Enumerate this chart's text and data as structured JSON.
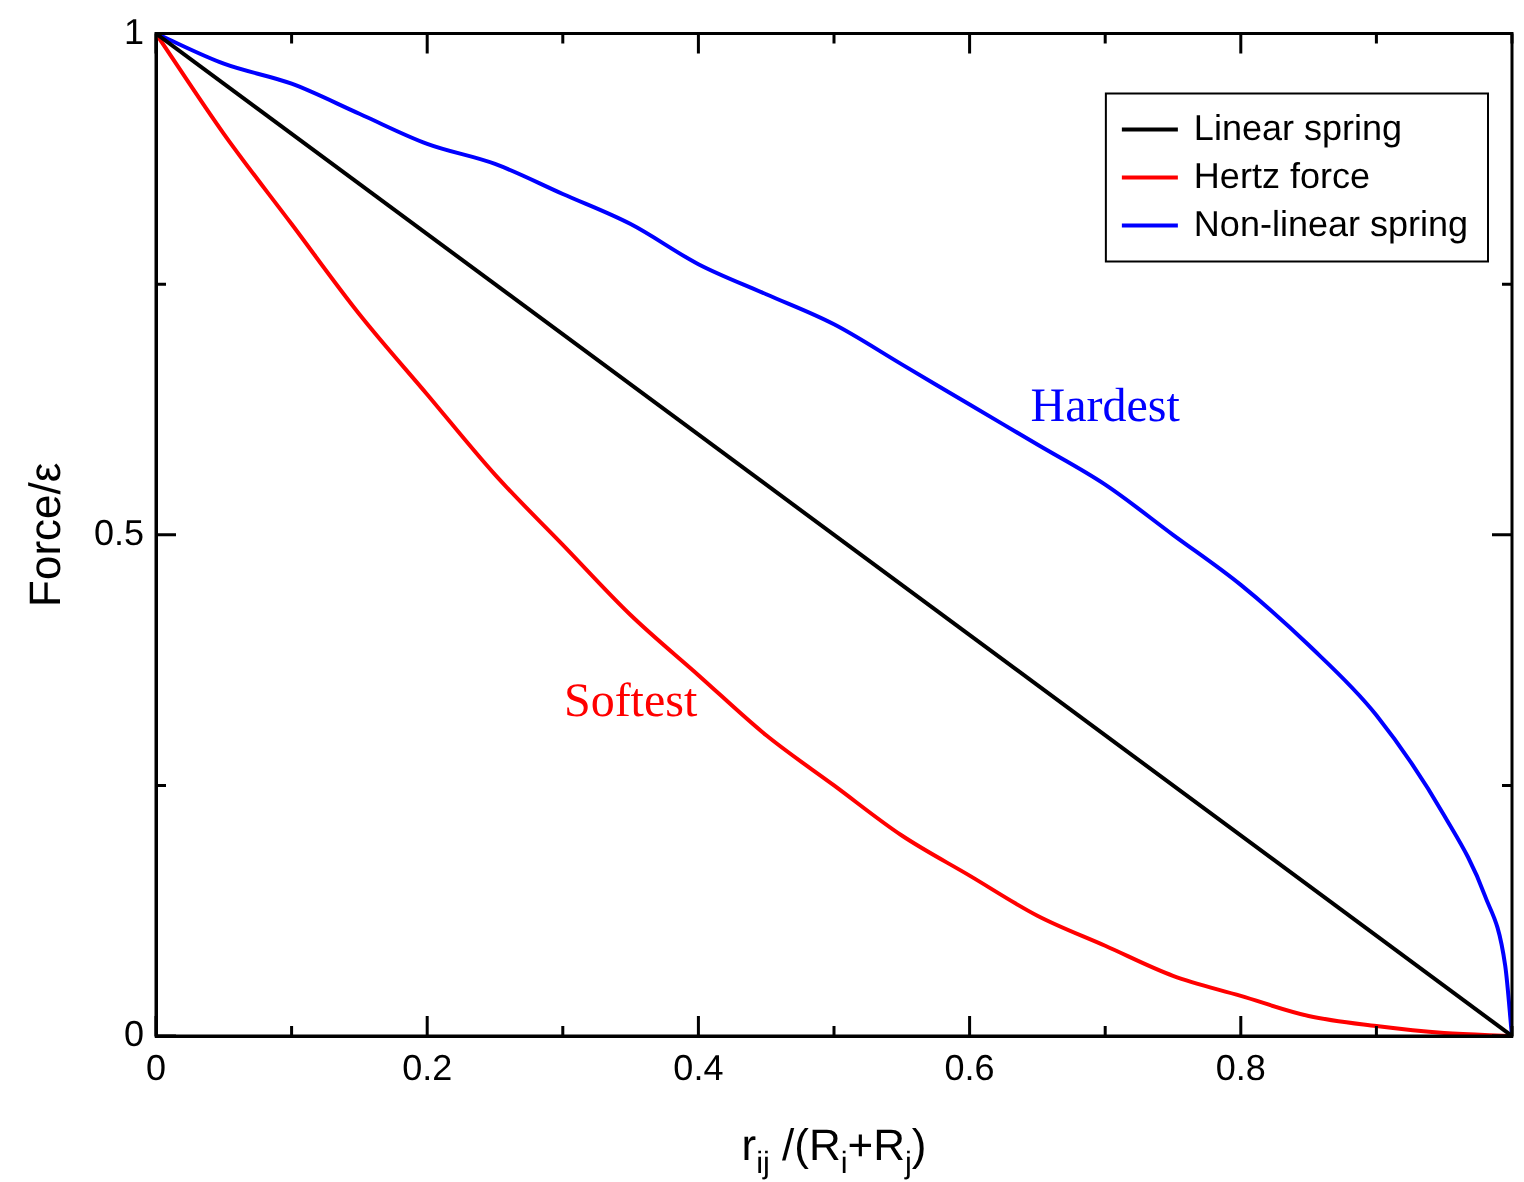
{
  "chart_data": {
    "type": "line",
    "xlabel": "r$_{ij}$ /(R$_{i}$+R$_{j}$)",
    "ylabel": "Force/ε",
    "xlim": [
      0,
      1
    ],
    "ylim": [
      0,
      1
    ],
    "xticks": [
      0,
      {
        "value": 0.1,
        "label": null
      },
      0.2,
      {
        "value": 0.3,
        "label": null
      },
      0.4,
      {
        "value": 0.5,
        "label": null
      },
      0.6,
      {
        "value": 0.7,
        "label": null
      },
      0.8,
      {
        "value": 0.9,
        "label": null
      },
      {
        "value": 1,
        "label": null
      }
    ],
    "yticks": [
      0,
      {
        "value": 0.25,
        "label": null
      },
      0.5,
      {
        "value": 0.75,
        "label": null
      },
      1
    ],
    "grid": false,
    "legend": "top right",
    "marker": "none",
    "line_style": "solid",
    "series": [
      {
        "name": "Linear spring",
        "color": "#000000",
        "x": [
          0,
          1
        ],
        "values": [
          1,
          0
        ]
      },
      {
        "name": "Hertz force",
        "color": "#ff0000",
        "x": [
          0,
          0.05,
          0.1,
          0.15,
          0.2,
          0.25,
          0.3,
          0.35,
          0.4,
          0.45,
          0.5,
          0.55,
          0.6,
          0.65,
          0.7,
          0.75,
          0.8,
          0.85,
          0.9,
          0.95,
          1
        ],
        "values": [
          1,
          0.9,
          0.81,
          0.72,
          0.64,
          0.56,
          0.49,
          0.42,
          0.36,
          0.3,
          0.25,
          0.2,
          0.16,
          0.12,
          0.09,
          0.06,
          0.04,
          0.02,
          0.01,
          0.003,
          0
        ]
      },
      {
        "name": "Non-linear spring",
        "color": "#0000ff",
        "x": [
          0,
          0.05,
          0.1,
          0.15,
          0.2,
          0.25,
          0.3,
          0.35,
          0.4,
          0.45,
          0.5,
          0.55,
          0.6,
          0.65,
          0.7,
          0.75,
          0.8,
          0.85,
          0.9,
          0.95,
          0.98,
          0.995,
          1
        ],
        "values": [
          1,
          0.97,
          0.95,
          0.92,
          0.89,
          0.87,
          0.84,
          0.81,
          0.77,
          0.74,
          0.71,
          0.67,
          0.63,
          0.59,
          0.55,
          0.5,
          0.45,
          0.39,
          0.32,
          0.22,
          0.14,
          0.07,
          0
        ]
      }
    ],
    "annotations": [
      "Hardest",
      "Softest"
    ]
  }
}
